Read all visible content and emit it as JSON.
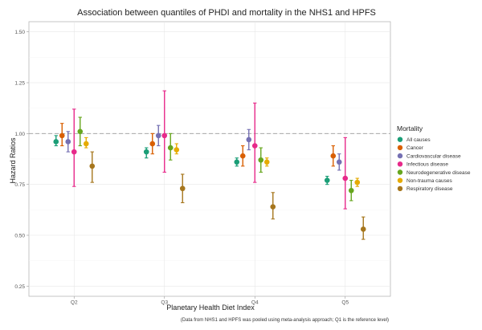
{
  "chart_data": {
    "type": "scatter",
    "title": "Association between quantiles of PHDI and mortality in the NHS1 and HPFS",
    "xlabel": "Planetary Health Diet Index",
    "ylabel": "Hazard Ratios",
    "caption": "(Data from NHS1 and HPFS was pooled using meta-analysis approach; Q1 is the reference level)",
    "categories": [
      "Q2",
      "Q3",
      "Q4",
      "Q5"
    ],
    "ylim": [
      0.2,
      1.55
    ],
    "yticks": [
      0.25,
      0.5,
      0.75,
      1.0,
      1.25,
      1.5
    ],
    "ytick_labels": [
      "0.25",
      "0.50",
      "0.75",
      "1.00",
      "1.25",
      "1.50"
    ],
    "reference_line": 1.0,
    "grid": true,
    "legend": {
      "title": "Mortality",
      "placement": "right"
    },
    "series": [
      {
        "name": "All causes",
        "color": "#1b9e77",
        "points": [
          {
            "hr": 0.96,
            "lo": 0.94,
            "hi": 0.99
          },
          {
            "hr": 0.91,
            "lo": 0.88,
            "hi": 0.93
          },
          {
            "hr": 0.86,
            "lo": 0.84,
            "hi": 0.88
          },
          {
            "hr": 0.77,
            "lo": 0.75,
            "hi": 0.79
          }
        ]
      },
      {
        "name": "Cancer",
        "color": "#d95f02",
        "points": [
          {
            "hr": 0.99,
            "lo": 0.94,
            "hi": 1.05
          },
          {
            "hr": 0.95,
            "lo": 0.9,
            "hi": 1.0
          },
          {
            "hr": 0.89,
            "lo": 0.84,
            "hi": 0.94
          },
          {
            "hr": 0.89,
            "lo": 0.84,
            "hi": 0.94
          }
        ]
      },
      {
        "name": "Cardiovascular disease",
        "color": "#7570b3",
        "points": [
          {
            "hr": 0.96,
            "lo": 0.91,
            "hi": 1.01
          },
          {
            "hr": 0.99,
            "lo": 0.94,
            "hi": 1.04
          },
          {
            "hr": 0.97,
            "lo": 0.92,
            "hi": 1.02
          },
          {
            "hr": 0.86,
            "lo": 0.82,
            "hi": 0.9
          }
        ]
      },
      {
        "name": "Infectious disease",
        "color": "#e7298a",
        "points": [
          {
            "hr": 0.91,
            "lo": 0.74,
            "hi": 1.12
          },
          {
            "hr": 0.99,
            "lo": 0.81,
            "hi": 1.21
          },
          {
            "hr": 0.94,
            "lo": 0.76,
            "hi": 1.15
          },
          {
            "hr": 0.78,
            "lo": 0.63,
            "hi": 0.98
          }
        ]
      },
      {
        "name": "Neurodegenerative disease",
        "color": "#66a61e",
        "points": [
          {
            "hr": 1.01,
            "lo": 0.94,
            "hi": 1.08
          },
          {
            "hr": 0.93,
            "lo": 0.87,
            "hi": 1.0
          },
          {
            "hr": 0.87,
            "lo": 0.81,
            "hi": 0.93
          },
          {
            "hr": 0.72,
            "lo": 0.67,
            "hi": 0.77
          }
        ]
      },
      {
        "name": "Non-trauma causes",
        "color": "#e6ab02",
        "points": [
          {
            "hr": 0.95,
            "lo": 0.93,
            "hi": 0.98
          },
          {
            "hr": 0.92,
            "lo": 0.9,
            "hi": 0.95
          },
          {
            "hr": 0.86,
            "lo": 0.84,
            "hi": 0.88
          },
          {
            "hr": 0.76,
            "lo": 0.74,
            "hi": 0.78
          }
        ]
      },
      {
        "name": "Respiratory disease",
        "color": "#a6761d",
        "points": [
          {
            "hr": 0.84,
            "lo": 0.76,
            "hi": 0.91
          },
          {
            "hr": 0.73,
            "lo": 0.66,
            "hi": 0.8
          },
          {
            "hr": 0.64,
            "lo": 0.58,
            "hi": 0.71
          },
          {
            "hr": 0.53,
            "lo": 0.48,
            "hi": 0.59
          }
        ]
      }
    ]
  }
}
